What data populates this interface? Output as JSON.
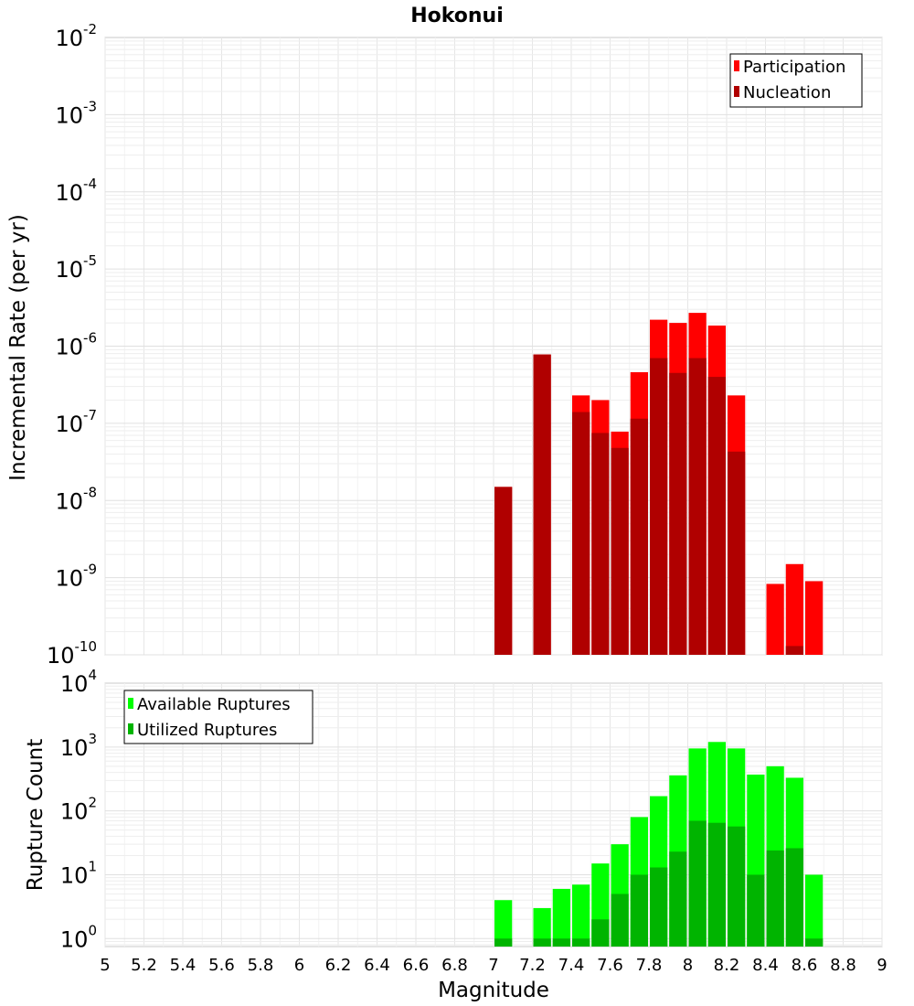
{
  "chart_data": [
    {
      "type": "bar",
      "title": "Hokonui",
      "xlabel": "",
      "ylabel": "Incremental Rate (per yr)",
      "yscale": "log",
      "ylim": [
        1e-10,
        0.01
      ],
      "xlim": [
        5,
        9
      ],
      "yticks": [
        {
          "base": "10",
          "exp": "-2"
        },
        {
          "base": "10",
          "exp": "-3"
        },
        {
          "base": "10",
          "exp": "-4"
        },
        {
          "base": "10",
          "exp": "-5"
        },
        {
          "base": "10",
          "exp": "-6"
        },
        {
          "base": "10",
          "exp": "-7"
        },
        {
          "base": "10",
          "exp": "-8"
        },
        {
          "base": "10",
          "exp": "-9"
        },
        {
          "base": "10",
          "exp": "-10"
        }
      ],
      "grid": true,
      "legend_position": "top-right",
      "x": [
        7.05,
        7.25,
        7.45,
        7.55,
        7.65,
        7.75,
        7.85,
        7.95,
        8.05,
        8.15,
        8.25,
        8.45,
        8.55,
        8.65
      ],
      "series": [
        {
          "name": "Participation",
          "color": "#ff0000",
          "values": [
            1.5e-08,
            7.8e-07,
            2.3e-07,
            2e-07,
            7.8e-08,
            4.6e-07,
            2.2e-06,
            2e-06,
            2.7e-06,
            1.85e-06,
            2.3e-07,
            8.3e-10,
            1.5e-09,
            9e-10
          ]
        },
        {
          "name": "Nucleation",
          "color": "#b00000",
          "values": [
            1.5e-08,
            7.8e-07,
            1.4e-07,
            7.5e-08,
            4.8e-08,
            1.15e-07,
            7e-07,
            4.5e-07,
            7e-07,
            4e-07,
            4.3e-08,
            null,
            1.3e-10,
            null
          ]
        }
      ]
    },
    {
      "type": "bar",
      "title": "",
      "xlabel": "Magnitude",
      "ylabel": "Rupture Count",
      "yscale": "log",
      "ylim": [
        0.75,
        10000
      ],
      "xlim": [
        5,
        9
      ],
      "xticks": [
        "5",
        "5.2",
        "5.4",
        "5.6",
        "5.8",
        "6",
        "6.2",
        "6.4",
        "6.6",
        "6.8",
        "7",
        "7.2",
        "7.4",
        "7.6",
        "7.8",
        "8",
        "8.2",
        "8.4",
        "8.6",
        "8.8",
        "9"
      ],
      "yticks": [
        {
          "base": "10",
          "exp": "4"
        },
        {
          "base": "10",
          "exp": "3"
        },
        {
          "base": "10",
          "exp": "2"
        },
        {
          "base": "10",
          "exp": "1"
        },
        {
          "base": "10",
          "exp": "0"
        }
      ],
      "grid": true,
      "legend_position": "top-left",
      "x": [
        7.05,
        7.25,
        7.35,
        7.45,
        7.55,
        7.65,
        7.75,
        7.85,
        7.95,
        8.05,
        8.15,
        8.25,
        8.35,
        8.45,
        8.55,
        8.65
      ],
      "series": [
        {
          "name": "Available Ruptures",
          "color": "#00ff00",
          "values": [
            4,
            3,
            6,
            7,
            15,
            30,
            80,
            170,
            360,
            950,
            1200,
            950,
            370,
            500,
            330,
            10
          ]
        },
        {
          "name": "Utilized Ruptures",
          "color": "#00b400",
          "values": [
            1,
            1,
            1,
            1,
            2,
            5,
            10,
            13,
            23,
            70,
            65,
            57,
            10,
            24,
            26,
            1
          ]
        }
      ]
    }
  ]
}
